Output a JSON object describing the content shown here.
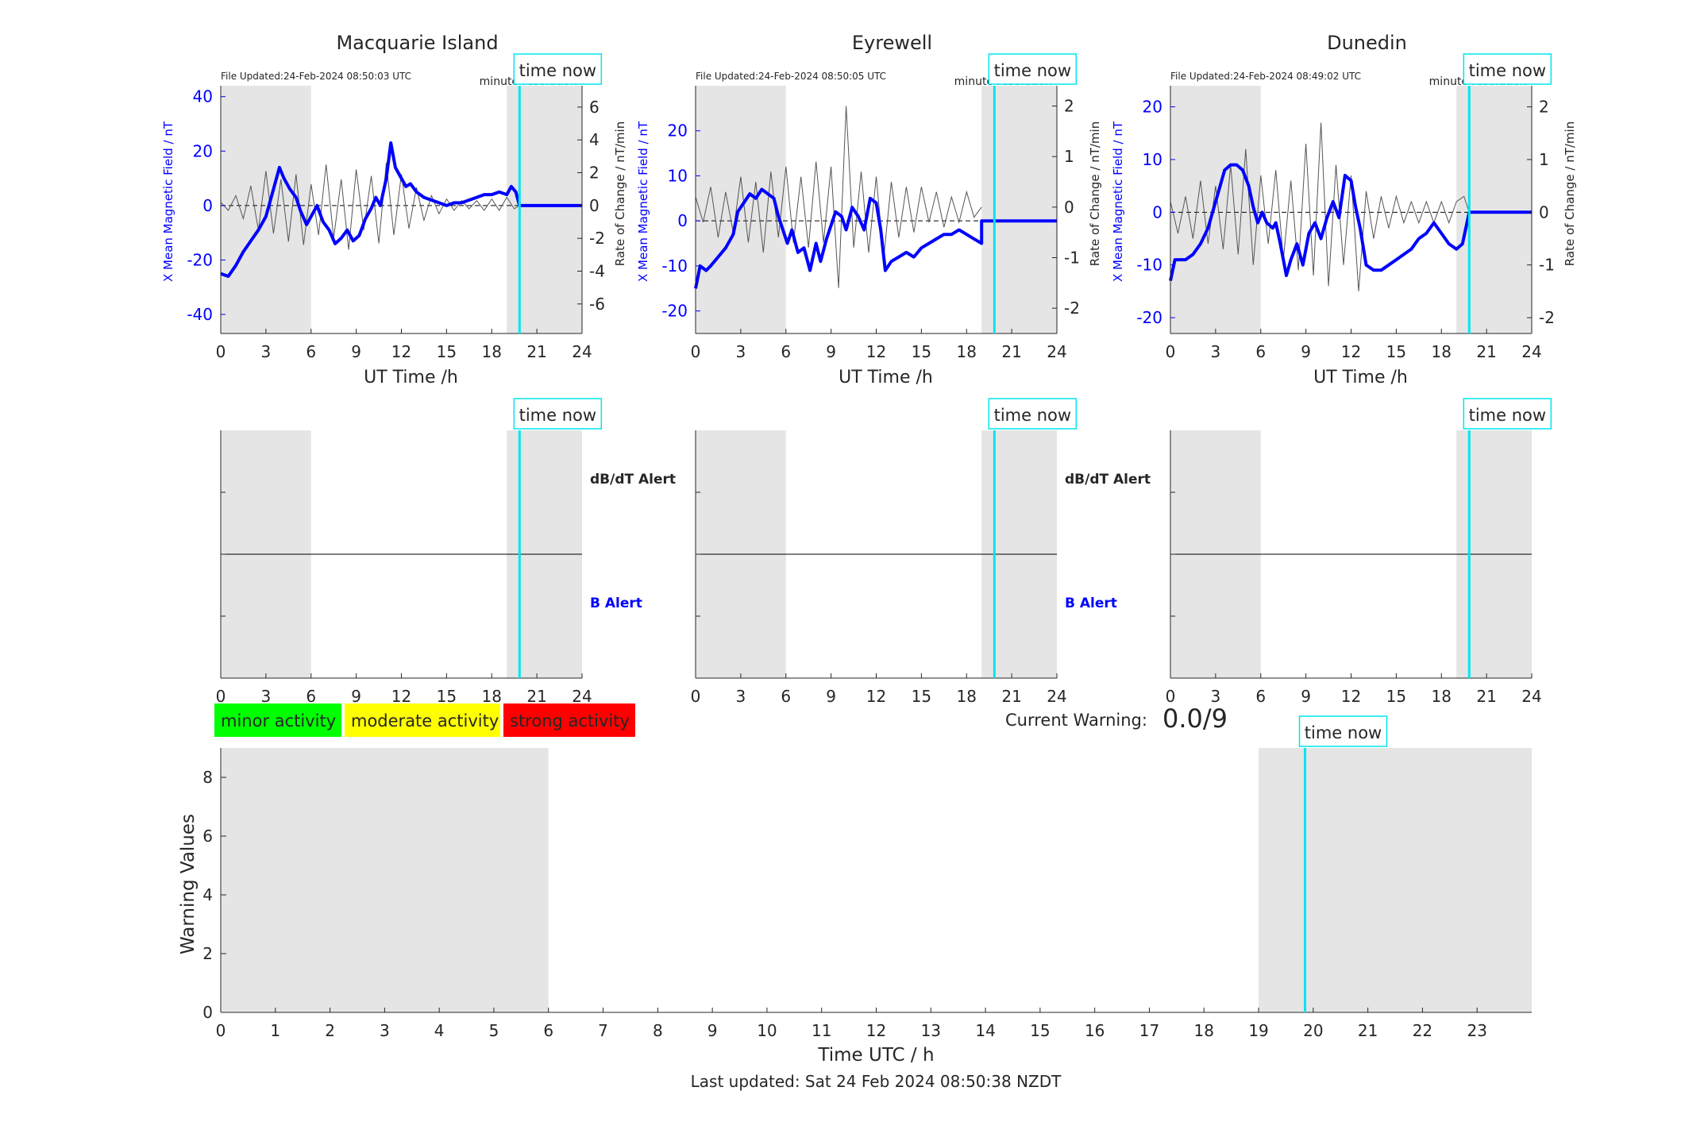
{
  "chart_data": [
    {
      "type": "line",
      "station": "Macquarie Island",
      "file_updated": "File Updated:24-Feb-2024 08:50:03 UTC",
      "resolution_label": "minute resolution",
      "time_now_label": "time now",
      "time_now_h": 19.85,
      "shaded_intervals_h": [
        [
          0,
          6
        ],
        [
          19,
          24
        ]
      ],
      "xlabel": "UT Time /h",
      "xlim": [
        0,
        24
      ],
      "xticks": [
        0,
        3,
        6,
        9,
        12,
        15,
        18,
        21,
        24
      ],
      "ylabel_left": "X Mean Magnetic Field / nT",
      "ylim_left": [
        -47,
        44
      ],
      "yticks_left": [
        -40,
        -20,
        0,
        20,
        40
      ],
      "ylabel_right": "Rate of Change / nT/min",
      "ylim_right": [
        -7.8,
        7.3
      ],
      "yticks_right": [
        -6,
        -4,
        -2,
        0,
        2,
        4,
        6
      ],
      "series_x_mean": [
        [
          0,
          -25
        ],
        [
          0.5,
          -26
        ],
        [
          1,
          -22
        ],
        [
          1.5,
          -17
        ],
        [
          2,
          -13
        ],
        [
          2.5,
          -9
        ],
        [
          3,
          -4
        ],
        [
          3.3,
          2
        ],
        [
          3.6,
          8
        ],
        [
          3.9,
          14
        ],
        [
          4.2,
          10
        ],
        [
          4.6,
          6
        ],
        [
          5,
          3
        ],
        [
          5.3,
          -2
        ],
        [
          5.7,
          -7
        ],
        [
          6,
          -4
        ],
        [
          6.4,
          0
        ],
        [
          6.8,
          -6
        ],
        [
          7.2,
          -9
        ],
        [
          7.6,
          -14
        ],
        [
          8,
          -12
        ],
        [
          8.4,
          -9
        ],
        [
          8.8,
          -13
        ],
        [
          9.2,
          -11
        ],
        [
          9.6,
          -5
        ],
        [
          10,
          -1
        ],
        [
          10.3,
          3
        ],
        [
          10.6,
          0
        ],
        [
          11,
          10
        ],
        [
          11.3,
          23
        ],
        [
          11.6,
          14
        ],
        [
          12,
          10
        ],
        [
          12.3,
          7
        ],
        [
          12.6,
          8
        ],
        [
          13,
          5
        ],
        [
          13.5,
          3
        ],
        [
          14,
          2
        ],
        [
          14.5,
          1
        ],
        [
          15,
          0
        ],
        [
          15.5,
          1
        ],
        [
          16,
          1
        ],
        [
          16.5,
          2
        ],
        [
          17,
          3
        ],
        [
          17.5,
          4
        ],
        [
          18,
          4
        ],
        [
          18.5,
          5
        ],
        [
          19,
          4
        ],
        [
          19.3,
          7
        ],
        [
          19.6,
          5
        ],
        [
          19.85,
          0
        ],
        [
          24,
          0
        ]
      ],
      "series_rate_of_change": [
        [
          0,
          0.2
        ],
        [
          0.5,
          -0.3
        ],
        [
          1,
          0.6
        ],
        [
          1.5,
          -0.8
        ],
        [
          2,
          1.2
        ],
        [
          2.5,
          -1.5
        ],
        [
          3,
          2.1
        ],
        [
          3.5,
          -1.7
        ],
        [
          4,
          1.6
        ],
        [
          4.5,
          -2.2
        ],
        [
          5,
          1.9
        ],
        [
          5.5,
          -2.4
        ],
        [
          6,
          1.3
        ],
        [
          6.5,
          -1.8
        ],
        [
          7,
          2.5
        ],
        [
          7.5,
          -2.0
        ],
        [
          8,
          1.6
        ],
        [
          8.5,
          -2.7
        ],
        [
          9,
          2.2
        ],
        [
          9.5,
          -1.5
        ],
        [
          10,
          1.8
        ],
        [
          10.5,
          -2.3
        ],
        [
          11,
          2.6
        ],
        [
          11.5,
          -1.8
        ],
        [
          12,
          1.9
        ],
        [
          12.5,
          -1.4
        ],
        [
          13,
          1.1
        ],
        [
          13.5,
          -0.9
        ],
        [
          14,
          0.6
        ],
        [
          14.5,
          -0.5
        ],
        [
          15,
          0.4
        ],
        [
          15.5,
          -0.3
        ],
        [
          16,
          0.3
        ],
        [
          16.5,
          -0.2
        ],
        [
          17,
          0.3
        ],
        [
          17.5,
          -0.3
        ],
        [
          18,
          0.4
        ],
        [
          18.5,
          -0.3
        ],
        [
          19,
          0.5
        ],
        [
          19.5,
          -0.2
        ],
        [
          19.85,
          0
        ]
      ]
    },
    {
      "type": "line",
      "station": "Eyrewell",
      "file_updated": "File Updated:24-Feb-2024 08:50:05 UTC",
      "resolution_label": "minute resolution",
      "time_now_label": "time now",
      "time_now_h": 19.85,
      "shaded_intervals_h": [
        [
          0,
          6
        ],
        [
          19,
          24
        ]
      ],
      "xlabel": "UT Time /h",
      "xlim": [
        0,
        24
      ],
      "xticks": [
        0,
        3,
        6,
        9,
        12,
        15,
        18,
        21,
        24
      ],
      "ylabel_left": "X Mean Magnetic Field / nT",
      "ylim_left": [
        -25,
        30
      ],
      "yticks_left": [
        -20,
        -10,
        0,
        10,
        20
      ],
      "ylabel_right": "Rate of Change / nT/min",
      "ylim_right": [
        -2.5,
        2.4
      ],
      "yticks_right": [
        -2,
        -1,
        0,
        1,
        2
      ],
      "series_x_mean": [
        [
          0,
          -15
        ],
        [
          0.3,
          -10
        ],
        [
          0.7,
          -11
        ],
        [
          1,
          -10
        ],
        [
          1.5,
          -8
        ],
        [
          2,
          -6
        ],
        [
          2.5,
          -3
        ],
        [
          2.8,
          2
        ],
        [
          3.2,
          4
        ],
        [
          3.6,
          6
        ],
        [
          4,
          5
        ],
        [
          4.4,
          7
        ],
        [
          4.8,
          6
        ],
        [
          5.2,
          5
        ],
        [
          5.5,
          1
        ],
        [
          5.8,
          -2
        ],
        [
          6.1,
          -5
        ],
        [
          6.4,
          -2
        ],
        [
          6.8,
          -7
        ],
        [
          7.2,
          -6
        ],
        [
          7.6,
          -11
        ],
        [
          8,
          -5
        ],
        [
          8.3,
          -9
        ],
        [
          8.7,
          -4
        ],
        [
          9,
          -1
        ],
        [
          9.3,
          2
        ],
        [
          9.7,
          1
        ],
        [
          10,
          -2
        ],
        [
          10.4,
          3
        ],
        [
          10.8,
          1
        ],
        [
          11.2,
          -2
        ],
        [
          11.6,
          5
        ],
        [
          12,
          4
        ],
        [
          12.3,
          -2
        ],
        [
          12.6,
          -11
        ],
        [
          13,
          -9
        ],
        [
          13.5,
          -8
        ],
        [
          14,
          -7
        ],
        [
          14.5,
          -8
        ],
        [
          15,
          -6
        ],
        [
          15.5,
          -5
        ],
        [
          16,
          -4
        ],
        [
          16.5,
          -3
        ],
        [
          17,
          -3
        ],
        [
          17.5,
          -2
        ],
        [
          18,
          -3
        ],
        [
          18.5,
          -4
        ],
        [
          19,
          -5
        ],
        [
          19,
          0
        ],
        [
          24,
          0
        ]
      ],
      "series_rate_of_change": [
        [
          0,
          0.2
        ],
        [
          0.5,
          -0.3
        ],
        [
          1,
          0.4
        ],
        [
          1.5,
          -0.6
        ],
        [
          2,
          0.3
        ],
        [
          2.5,
          -0.5
        ],
        [
          3,
          0.6
        ],
        [
          3.5,
          -0.7
        ],
        [
          4,
          0.5
        ],
        [
          4.5,
          -0.9
        ],
        [
          5,
          0.7
        ],
        [
          5.5,
          -0.6
        ],
        [
          6,
          0.8
        ],
        [
          6.5,
          -0.7
        ],
        [
          7,
          0.6
        ],
        [
          7.5,
          -0.8
        ],
        [
          8,
          0.9
        ],
        [
          8.5,
          -0.7
        ],
        [
          9,
          0.8
        ],
        [
          9.5,
          -1.6
        ],
        [
          10,
          2.0
        ],
        [
          10.5,
          -0.8
        ],
        [
          11,
          0.7
        ],
        [
          11.5,
          -0.9
        ],
        [
          12,
          0.6
        ],
        [
          12.5,
          -1.0
        ],
        [
          13,
          0.5
        ],
        [
          13.5,
          -0.6
        ],
        [
          14,
          0.4
        ],
        [
          14.5,
          -0.5
        ],
        [
          15,
          0.4
        ],
        [
          15.5,
          -0.3
        ],
        [
          16,
          0.3
        ],
        [
          16.5,
          -0.4
        ],
        [
          17,
          0.2
        ],
        [
          17.5,
          -0.3
        ],
        [
          18,
          0.3
        ],
        [
          18.5,
          -0.2
        ],
        [
          19,
          0
        ]
      ]
    },
    {
      "type": "line",
      "station": "Dunedin",
      "file_updated": "File Updated:24-Feb-2024 08:49:02 UTC",
      "resolution_label": "minute resolution",
      "time_now_label": "time now",
      "time_now_h": 19.85,
      "shaded_intervals_h": [
        [
          0,
          6
        ],
        [
          19,
          24
        ]
      ],
      "xlabel": "UT Time /h",
      "xlim": [
        0,
        24
      ],
      "xticks": [
        0,
        3,
        6,
        9,
        12,
        15,
        18,
        21,
        24
      ],
      "ylabel_left": "X Mean Magnetic Field / nT",
      "ylim_left": [
        -23,
        24
      ],
      "yticks_left": [
        -20,
        -10,
        0,
        10,
        20
      ],
      "ylabel_right": "Rate of Change / nT/min",
      "ylim_right": [
        -2.3,
        2.4
      ],
      "yticks_right": [
        -2,
        -1,
        0,
        1,
        2
      ],
      "series_x_mean": [
        [
          0,
          -13
        ],
        [
          0.3,
          -9
        ],
        [
          0.7,
          -9
        ],
        [
          1,
          -9
        ],
        [
          1.5,
          -8
        ],
        [
          2,
          -6
        ],
        [
          2.5,
          -3
        ],
        [
          2.8,
          0
        ],
        [
          3.2,
          4
        ],
        [
          3.6,
          8
        ],
        [
          4,
          9
        ],
        [
          4.4,
          9
        ],
        [
          4.8,
          8
        ],
        [
          5.2,
          5
        ],
        [
          5.5,
          1
        ],
        [
          5.8,
          -2
        ],
        [
          6.1,
          0
        ],
        [
          6.4,
          -2
        ],
        [
          6.8,
          -3
        ],
        [
          7,
          -2
        ],
        [
          7.3,
          -6
        ],
        [
          7.7,
          -12
        ],
        [
          8,
          -9
        ],
        [
          8.4,
          -6
        ],
        [
          8.8,
          -10
        ],
        [
          9.2,
          -4
        ],
        [
          9.6,
          -2
        ],
        [
          10,
          -5
        ],
        [
          10.4,
          -1
        ],
        [
          10.8,
          2
        ],
        [
          11.2,
          -1
        ],
        [
          11.6,
          7
        ],
        [
          12,
          6
        ],
        [
          12.3,
          1
        ],
        [
          12.6,
          -3
        ],
        [
          13,
          -10
        ],
        [
          13.5,
          -11
        ],
        [
          14,
          -11
        ],
        [
          14.5,
          -10
        ],
        [
          15,
          -9
        ],
        [
          15.5,
          -8
        ],
        [
          16,
          -7
        ],
        [
          16.5,
          -5
        ],
        [
          17,
          -4
        ],
        [
          17.5,
          -2
        ],
        [
          18,
          -4
        ],
        [
          18.5,
          -6
        ],
        [
          19,
          -7
        ],
        [
          19.4,
          -6
        ],
        [
          19.85,
          0
        ],
        [
          24,
          0
        ]
      ],
      "series_rate_of_change": [
        [
          0,
          0.2
        ],
        [
          0.5,
          -0.4
        ],
        [
          1,
          0.3
        ],
        [
          1.5,
          -0.5
        ],
        [
          2,
          0.6
        ],
        [
          2.5,
          -0.6
        ],
        [
          3,
          0.5
        ],
        [
          3.5,
          -0.7
        ],
        [
          4,
          0.9
        ],
        [
          4.5,
          -0.8
        ],
        [
          5,
          1.2
        ],
        [
          5.5,
          -1.0
        ],
        [
          6,
          0.7
        ],
        [
          6.5,
          -0.6
        ],
        [
          7,
          0.8
        ],
        [
          7.5,
          -0.9
        ],
        [
          8,
          0.6
        ],
        [
          8.5,
          -1.1
        ],
        [
          9,
          1.3
        ],
        [
          9.5,
          -1.2
        ],
        [
          10,
          1.7
        ],
        [
          10.5,
          -1.4
        ],
        [
          11,
          0.9
        ],
        [
          11.5,
          -1.0
        ],
        [
          12,
          0.7
        ],
        [
          12.5,
          -1.5
        ],
        [
          13,
          0.4
        ],
        [
          13.5,
          -0.5
        ],
        [
          14,
          0.3
        ],
        [
          14.5,
          -0.3
        ],
        [
          15,
          0.3
        ],
        [
          15.5,
          -0.2
        ],
        [
          16,
          0.2
        ],
        [
          16.5,
          -0.2
        ],
        [
          17,
          0.2
        ],
        [
          17.5,
          -0.2
        ],
        [
          18,
          0.2
        ],
        [
          18.5,
          -0.2
        ],
        [
          19,
          0.2
        ],
        [
          19.5,
          0.3
        ],
        [
          19.85,
          0
        ]
      ]
    },
    {
      "type": "line",
      "station": "Macquarie Island",
      "time_now_label": "time now",
      "time_now_h": 19.85,
      "shaded_intervals_h": [
        [
          0,
          6
        ],
        [
          19,
          24
        ]
      ],
      "xlim": [
        0,
        24
      ],
      "xticks": [
        0,
        3,
        6,
        9,
        12,
        15,
        18,
        21,
        24
      ],
      "alert_labels": [
        "dB/dT Alert",
        "B Alert"
      ]
    },
    {
      "type": "line",
      "station": "Eyrewell",
      "time_now_label": "time now",
      "time_now_h": 19.85,
      "shaded_intervals_h": [
        [
          0,
          6
        ],
        [
          19,
          24
        ]
      ],
      "xlim": [
        0,
        24
      ],
      "xticks": [
        0,
        3,
        6,
        9,
        12,
        15,
        18,
        21,
        24
      ],
      "alert_labels": [
        "dB/dT Alert",
        "B Alert"
      ]
    },
    {
      "type": "line",
      "station": "Dunedin",
      "time_now_label": "time now",
      "time_now_h": 19.85,
      "shaded_intervals_h": [
        [
          0,
          6
        ],
        [
          19,
          24
        ]
      ],
      "xlim": [
        0,
        24
      ],
      "xticks": [
        0,
        3,
        6,
        9,
        12,
        15,
        18,
        21,
        24
      ]
    },
    {
      "type": "line",
      "xlabel": "Time UTC / h",
      "ylabel": "Warning Values",
      "xlim": [
        0,
        24
      ],
      "ylim": [
        0,
        9
      ],
      "xticks": [
        0,
        1,
        2,
        3,
        4,
        5,
        6,
        7,
        8,
        9,
        10,
        11,
        12,
        13,
        14,
        15,
        16,
        17,
        18,
        19,
        20,
        21,
        22,
        23
      ],
      "yticks": [
        0,
        2,
        4,
        6,
        8
      ],
      "shaded_intervals_h": [
        [
          0,
          6
        ],
        [
          19,
          24
        ]
      ],
      "time_now_label": "time now",
      "time_now_h": 19.85
    }
  ],
  "legend": {
    "items": [
      {
        "label": "minor activity",
        "color": "#00ff00"
      },
      {
        "label": "moderate activity",
        "color": "#ffff00"
      },
      {
        "label": "strong activity",
        "color": "#ff0000"
      }
    ]
  },
  "current_warning": {
    "label": "Current Warning:",
    "value": "0.0/9"
  },
  "footer": {
    "last_updated": "Last updated: Sat 24 Feb 2024 08:50:38 NZDT"
  },
  "colors": {
    "x_mean": "#0000ff",
    "rate": "#000000",
    "time_now": "#00e5ee",
    "shade": "#e5e5e5",
    "b_alert": "#0000ff"
  }
}
